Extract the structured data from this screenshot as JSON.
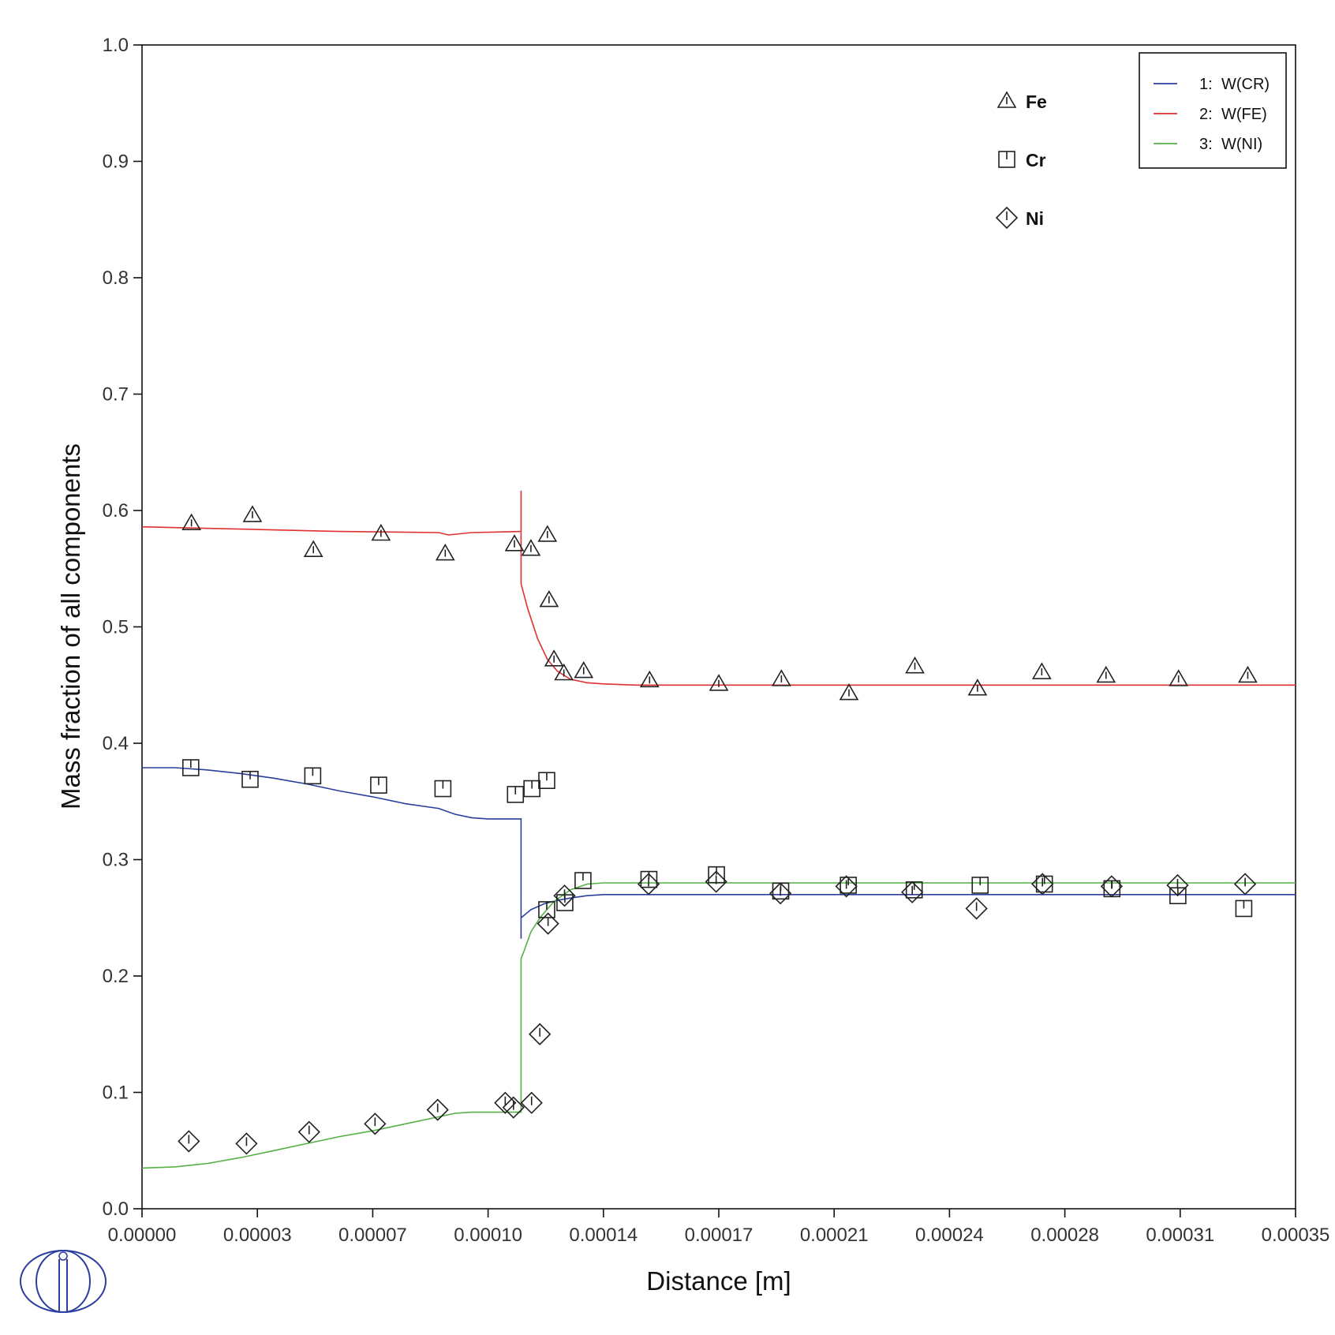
{
  "chart_data": {
    "type": "line",
    "title": "",
    "xlabel": "Distance [m]",
    "ylabel": "Mass fraction of all components",
    "xlim": [
      0,
      0.00035
    ],
    "ylim": [
      0,
      1.0
    ],
    "xticks": [
      "0.00000",
      "0.00003",
      "0.00007",
      "0.00010",
      "0.00014",
      "0.00017",
      "0.00021",
      "0.00024",
      "0.00028",
      "0.00031",
      "0.00035"
    ],
    "yticks": [
      "0.0",
      "0.1",
      "0.2",
      "0.3",
      "0.4",
      "0.5",
      "0.6",
      "0.7",
      "0.8",
      "0.9",
      "1.0"
    ],
    "grid": false,
    "legend_placement": "top-right",
    "series": [
      {
        "name": "W(CR)",
        "index": "1:",
        "color": "#2b3f9e",
        "x": [
          0,
          1e-05,
          2e-05,
          3e-05,
          4e-05,
          5e-05,
          6e-05,
          7e-05,
          8e-05,
          9e-05,
          9.5e-05,
          0.0001,
          0.000105,
          0.000115,
          0.000115,
          0.000115,
          0.000118,
          0.000122,
          0.000126,
          0.00013,
          0.000135,
          0.00014,
          0.00015,
          0.00035
        ],
        "y": [
          0.379,
          0.379,
          0.377,
          0.374,
          0.37,
          0.365,
          0.359,
          0.354,
          0.348,
          0.344,
          0.339,
          0.336,
          0.335,
          0.335,
          0.232,
          0.25,
          0.257,
          0.262,
          0.265,
          0.267,
          0.269,
          0.27,
          0.27,
          0.27
        ]
      },
      {
        "name": "W(FE)",
        "index": "2:",
        "color": "#e03030",
        "x": [
          0,
          3e-05,
          6e-05,
          9e-05,
          9.3e-05,
          0.0001,
          0.000115,
          0.000115,
          0.000115,
          0.000117,
          0.00012,
          0.000123,
          0.000126,
          0.00013,
          0.000135,
          0.00014,
          0.00015,
          0.00035
        ],
        "y": [
          0.586,
          0.584,
          0.582,
          0.581,
          0.579,
          0.581,
          0.582,
          0.617,
          0.537,
          0.516,
          0.49,
          0.472,
          0.462,
          0.455,
          0.452,
          0.451,
          0.45,
          0.45
        ]
      },
      {
        "name": "W(NI)",
        "index": "3:",
        "color": "#55b046",
        "x": [
          0,
          1e-05,
          2e-05,
          3e-05,
          4e-05,
          5e-05,
          6e-05,
          7e-05,
          8e-05,
          9e-05,
          9.5e-05,
          0.0001,
          0.000105,
          0.000115,
          0.000115,
          0.000116,
          0.000118,
          0.000121,
          0.000125,
          0.00013,
          0.000135,
          0.00014,
          0.00015,
          0.00035
        ],
        "y": [
          0.035,
          0.036,
          0.039,
          0.044,
          0.05,
          0.056,
          0.062,
          0.067,
          0.073,
          0.079,
          0.082,
          0.083,
          0.083,
          0.083,
          0.215,
          0.222,
          0.238,
          0.251,
          0.264,
          0.274,
          0.279,
          0.28,
          0.28,
          0.28
        ]
      }
    ],
    "markers": [
      {
        "label": "Fe",
        "shape": "triangle",
        "points": [
          [
            1.5e-05,
            0.589
          ],
          [
            3.35e-05,
            0.596
          ],
          [
            5.2e-05,
            0.566
          ],
          [
            7.25e-05,
            0.58
          ],
          [
            9.2e-05,
            0.563
          ],
          [
            0.000113,
            0.571
          ],
          [
            0.000118,
            0.567
          ],
          [
            0.000123,
            0.579
          ],
          [
            0.0001235,
            0.523
          ],
          [
            0.000125,
            0.472
          ],
          [
            0.000128,
            0.46
          ],
          [
            0.000134,
            0.462
          ],
          [
            0.000154,
            0.454
          ],
          [
            0.000175,
            0.451
          ],
          [
            0.000194,
            0.455
          ],
          [
            0.0002145,
            0.443
          ],
          [
            0.0002345,
            0.466
          ],
          [
            0.0002535,
            0.447
          ],
          [
            0.000273,
            0.461
          ],
          [
            0.0002925,
            0.458
          ],
          [
            0.0003145,
            0.455
          ],
          [
            0.0003355,
            0.458
          ]
        ]
      },
      {
        "label": "Cr",
        "shape": "square",
        "points": [
          [
            1.48e-05,
            0.379
          ],
          [
            3.28e-05,
            0.369
          ],
          [
            5.18e-05,
            0.372
          ],
          [
            7.18e-05,
            0.364
          ],
          [
            9.13e-05,
            0.361
          ],
          [
            0.0001133,
            0.356
          ],
          [
            0.0001183,
            0.361
          ],
          [
            0.0001228,
            0.368
          ],
          [
            0.0001228,
            0.257
          ],
          [
            0.0001283,
            0.263
          ],
          [
            0.0001338,
            0.282
          ],
          [
            0.0001538,
            0.283
          ],
          [
            0.0001743,
            0.287
          ],
          [
            0.0001938,
            0.273
          ],
          [
            0.0002143,
            0.278
          ],
          [
            0.0002343,
            0.274
          ],
          [
            0.0002543,
            0.278
          ],
          [
            0.0002738,
            0.279
          ],
          [
            0.0002943,
            0.275
          ],
          [
            0.0003143,
            0.269
          ],
          [
            0.0003343,
            0.258
          ]
        ]
      },
      {
        "label": "Ni",
        "shape": "diamond",
        "points": [
          [
            1.42e-05,
            0.058
          ],
          [
            3.17e-05,
            0.056
          ],
          [
            5.07e-05,
            0.066
          ],
          [
            7.07e-05,
            0.073
          ],
          [
            8.97e-05,
            0.085
          ],
          [
            0.0001102,
            0.091
          ],
          [
            0.0001127,
            0.087
          ],
          [
            0.0001182,
            0.091
          ],
          [
            0.0001207,
            0.15
          ],
          [
            0.0001232,
            0.245
          ],
          [
            0.0001282,
            0.269
          ],
          [
            0.0001537,
            0.279
          ],
          [
            0.0001742,
            0.281
          ],
          [
            0.0001937,
            0.271
          ],
          [
            0.0002137,
            0.277
          ],
          [
            0.0002337,
            0.272
          ],
          [
            0.0002532,
            0.258
          ],
          [
            0.0002732,
            0.279
          ],
          [
            0.0002942,
            0.277
          ],
          [
            0.0003142,
            0.278
          ],
          [
            0.0003347,
            0.279
          ]
        ]
      }
    ]
  }
}
